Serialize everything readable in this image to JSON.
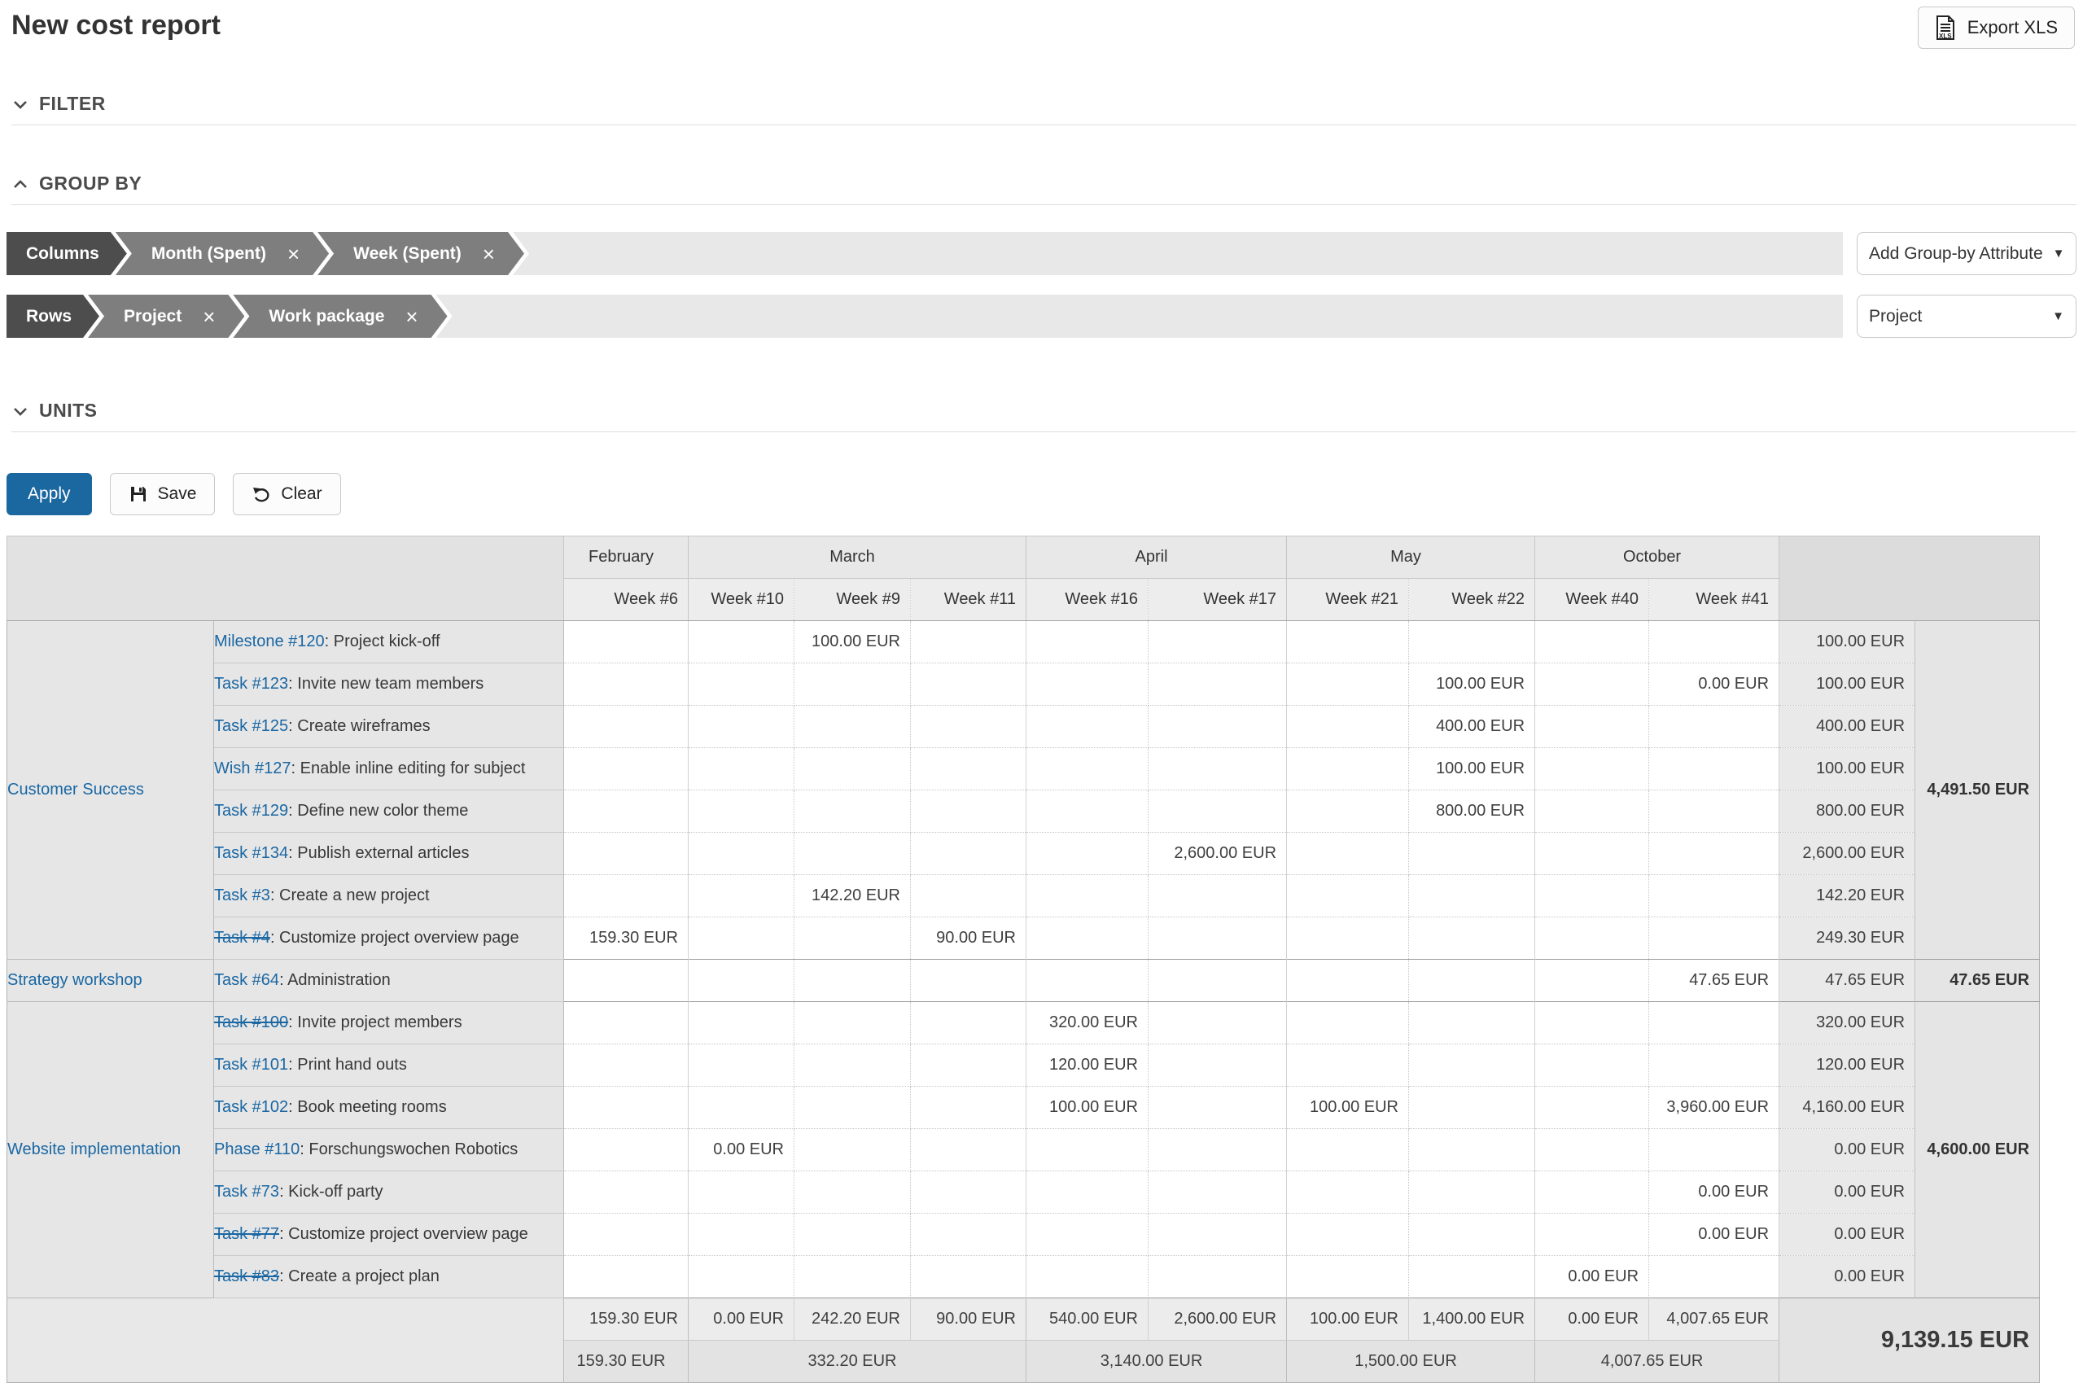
{
  "page": {
    "title": "New cost report",
    "export_button": "Export XLS"
  },
  "sections": {
    "filter": "FILTER",
    "group_by": "GROUP BY",
    "units": "UNITS"
  },
  "group_by": {
    "columns_label": "Columns",
    "rows_label": "Rows",
    "column_items": [
      "Month (Spent)",
      "Week (Spent)"
    ],
    "row_items": [
      "Project",
      "Work package"
    ],
    "add_attribute_dropdown": "Add Group-by Attribute",
    "row_attribute_dropdown": "Project"
  },
  "actions": {
    "apply": "Apply",
    "save": "Save",
    "clear": "Clear"
  },
  "colors": {
    "accent_blue": "#1B67A0",
    "link_blue": "#1A67A3",
    "chevron_dark": "#4D4D4D",
    "chevron_gray": "#7E7E7E"
  },
  "report_table": {
    "months": [
      {
        "label": "February",
        "weeks": [
          "Week #6"
        ]
      },
      {
        "label": "March",
        "weeks": [
          "Week #10",
          "Week #9",
          "Week #11"
        ]
      },
      {
        "label": "April",
        "weeks": [
          "Week #16",
          "Week #17"
        ]
      },
      {
        "label": "May",
        "weeks": [
          "Week #21",
          "Week #22"
        ]
      },
      {
        "label": "October",
        "weeks": [
          "Week #40",
          "Week #41"
        ]
      }
    ],
    "groups": [
      {
        "project": "Customer Success",
        "project_total": "4,491.50 EUR",
        "rows": [
          {
            "ref": "Milestone #120",
            "closed": false,
            "subject": "Project kick-off",
            "values": [
              "",
              "",
              "100.00 EUR",
              "",
              "",
              "",
              "",
              "",
              "",
              ""
            ],
            "total": "100.00 EUR"
          },
          {
            "ref": "Task #123",
            "closed": false,
            "subject": "Invite new team members",
            "values": [
              "",
              "",
              "",
              "",
              "",
              "",
              "",
              "100.00 EUR",
              "",
              "0.00 EUR"
            ],
            "total": "100.00 EUR"
          },
          {
            "ref": "Task #125",
            "closed": false,
            "subject": "Create wireframes",
            "values": [
              "",
              "",
              "",
              "",
              "",
              "",
              "",
              "400.00 EUR",
              "",
              ""
            ],
            "total": "400.00 EUR"
          },
          {
            "ref": "Wish #127",
            "closed": false,
            "subject": "Enable inline editing for subject",
            "values": [
              "",
              "",
              "",
              "",
              "",
              "",
              "",
              "100.00 EUR",
              "",
              ""
            ],
            "total": "100.00 EUR"
          },
          {
            "ref": "Task #129",
            "closed": false,
            "subject": "Define new color theme",
            "values": [
              "",
              "",
              "",
              "",
              "",
              "",
              "",
              "800.00 EUR",
              "",
              ""
            ],
            "total": "800.00 EUR"
          },
          {
            "ref": "Task #134",
            "closed": false,
            "subject": "Publish external articles",
            "values": [
              "",
              "",
              "",
              "",
              "",
              "2,600.00 EUR",
              "",
              "",
              "",
              ""
            ],
            "total": "2,600.00 EUR"
          },
          {
            "ref": "Task #3",
            "closed": false,
            "subject": "Create a new project",
            "values": [
              "",
              "",
              "142.20 EUR",
              "",
              "",
              "",
              "",
              "",
              "",
              ""
            ],
            "total": "142.20 EUR"
          },
          {
            "ref": "Task #4",
            "closed": true,
            "subject": "Customize project overview page",
            "values": [
              "159.30 EUR",
              "",
              "",
              "90.00 EUR",
              "",
              "",
              "",
              "",
              "",
              ""
            ],
            "total": "249.30 EUR"
          }
        ]
      },
      {
        "project": "Strategy workshop",
        "project_total": "47.65 EUR",
        "rows": [
          {
            "ref": "Task #64",
            "closed": false,
            "subject": "Administration",
            "values": [
              "",
              "",
              "",
              "",
              "",
              "",
              "",
              "",
              "",
              "47.65 EUR"
            ],
            "total": "47.65 EUR"
          }
        ]
      },
      {
        "project": "Website implementation",
        "project_total": "4,600.00 EUR",
        "rows": [
          {
            "ref": "Task #100",
            "closed": true,
            "subject": "Invite project members",
            "values": [
              "",
              "",
              "",
              "",
              "320.00 EUR",
              "",
              "",
              "",
              "",
              ""
            ],
            "total": "320.00 EUR"
          },
          {
            "ref": "Task #101",
            "closed": false,
            "subject": "Print hand outs",
            "values": [
              "",
              "",
              "",
              "",
              "120.00 EUR",
              "",
              "",
              "",
              "",
              ""
            ],
            "total": "120.00 EUR"
          },
          {
            "ref": "Task #102",
            "closed": false,
            "subject": "Book meeting rooms",
            "values": [
              "",
              "",
              "",
              "",
              "100.00 EUR",
              "",
              "100.00 EUR",
              "",
              "",
              "3,960.00 EUR"
            ],
            "total": "4,160.00 EUR"
          },
          {
            "ref": "Phase #110",
            "closed": false,
            "subject": "Forschungswochen Robotics",
            "values": [
              "",
              "0.00 EUR",
              "",
              "",
              "",
              "",
              "",
              "",
              "",
              ""
            ],
            "total": "0.00 EUR"
          },
          {
            "ref": "Task #73",
            "closed": false,
            "subject": "Kick-off party",
            "values": [
              "",
              "",
              "",
              "",
              "",
              "",
              "",
              "",
              "",
              "0.00 EUR"
            ],
            "total": "0.00 EUR"
          },
          {
            "ref": "Task #77",
            "closed": true,
            "subject": "Customize project overview page",
            "values": [
              "",
              "",
              "",
              "",
              "",
              "",
              "",
              "",
              "",
              "0.00 EUR"
            ],
            "total": "0.00 EUR"
          },
          {
            "ref": "Task #83",
            "closed": true,
            "subject": "Create a project plan",
            "values": [
              "",
              "",
              "",
              "",
              "",
              "",
              "",
              "",
              "0.00 EUR",
              ""
            ],
            "total": "0.00 EUR"
          }
        ]
      }
    ],
    "footer": {
      "week_totals": [
        "159.30 EUR",
        "0.00 EUR",
        "242.20 EUR",
        "90.00 EUR",
        "540.00 EUR",
        "2,600.00 EUR",
        "100.00 EUR",
        "1,400.00 EUR",
        "0.00 EUR",
        "4,007.65 EUR"
      ],
      "month_totals": [
        "159.30 EUR",
        "332.20 EUR",
        "3,140.00 EUR",
        "1,500.00 EUR",
        "4,007.65 EUR"
      ],
      "grand_total": "9,139.15 EUR"
    }
  }
}
